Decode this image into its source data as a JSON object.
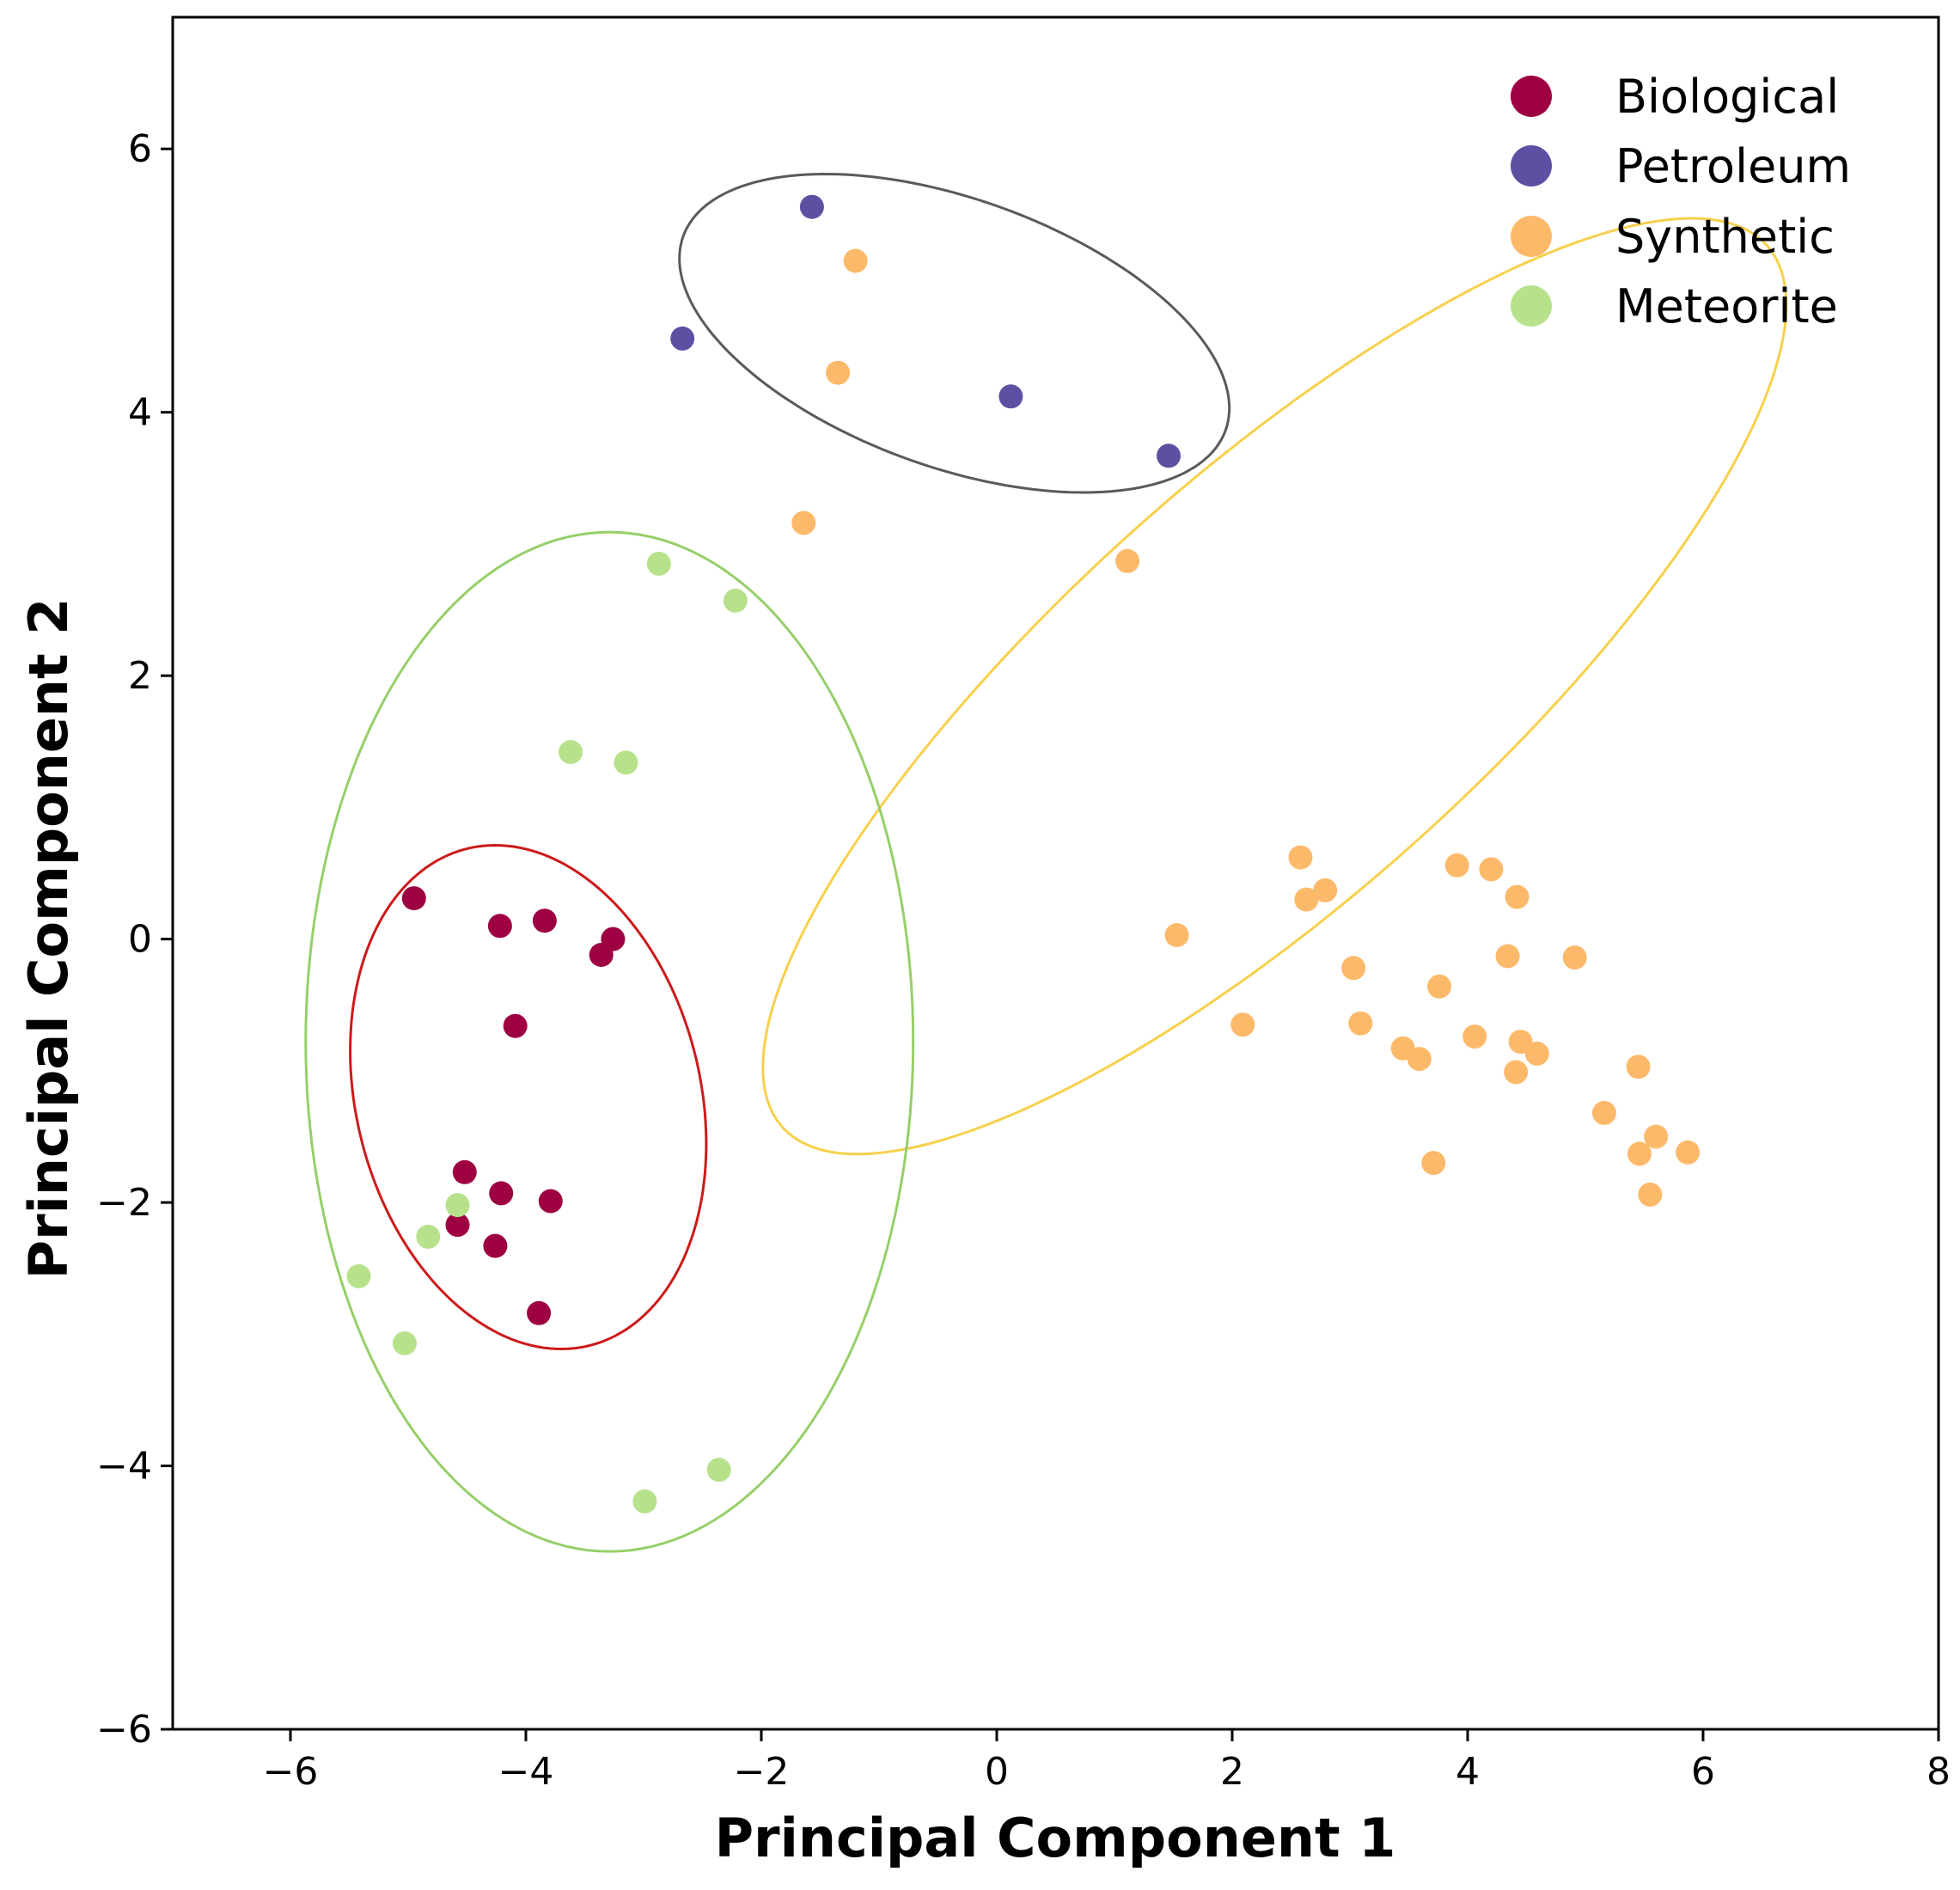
{
  "chart_data": {
    "type": "scatter",
    "title": "",
    "xlabel": "Principal Component 1",
    "ylabel": "Principal Component 2",
    "xlim": [
      -7,
      8
    ],
    "ylim": [
      -6,
      7
    ],
    "xticks": [
      -6,
      -4,
      -2,
      0,
      2,
      4,
      6,
      8
    ],
    "yticks": [
      -6,
      -4,
      -2,
      0,
      2,
      4,
      6
    ],
    "xtick_labels": [
      "−6",
      "−4",
      "−2",
      "0",
      "2",
      "4",
      "6",
      "8"
    ],
    "ytick_labels": [
      "−6",
      "−4",
      "−2",
      "0",
      "2",
      "4",
      "6"
    ],
    "grid": false,
    "legend_position": "top-right",
    "series": [
      {
        "name": "Biological",
        "color": "#9E0142",
        "points": [
          [
            -4.95,
            0.31
          ],
          [
            -4.22,
            0.1
          ],
          [
            -3.84,
            0.14
          ],
          [
            -3.26,
            0.0
          ],
          [
            -3.36,
            -0.12
          ],
          [
            -4.09,
            -0.66
          ],
          [
            -4.52,
            -1.77
          ],
          [
            -4.21,
            -1.93
          ],
          [
            -3.79,
            -1.99
          ],
          [
            -4.58,
            -2.17
          ],
          [
            -4.26,
            -2.33
          ],
          [
            -3.89,
            -2.84
          ]
        ],
        "ellipse": {
          "cx": -3.98,
          "cy": -1.2,
          "rx": 1.45,
          "ry": 1.96,
          "angle_deg": 19
        }
      },
      {
        "name": "Petroleum",
        "color": "#5E4FA2",
        "points": [
          [
            -1.57,
            5.56
          ],
          [
            -2.67,
            4.56
          ],
          [
            0.12,
            4.12
          ],
          [
            1.46,
            3.67
          ]
        ],
        "ellipse": {
          "cx": -0.36,
          "cy": 4.6,
          "rx": 2.42,
          "ry": 1.03,
          "angle_deg": -16.8
        }
      },
      {
        "name": "Synthetic",
        "color": "#FDB96A",
        "points": [
          [
            -1.2,
            5.15
          ],
          [
            -1.35,
            4.3
          ],
          [
            -1.64,
            3.16
          ],
          [
            1.11,
            2.87
          ],
          [
            1.53,
            0.03
          ],
          [
            2.58,
            0.62
          ],
          [
            2.63,
            0.3
          ],
          [
            2.79,
            0.37
          ],
          [
            3.91,
            0.56
          ],
          [
            4.2,
            0.53
          ],
          [
            4.42,
            0.32
          ],
          [
            3.03,
            -0.22
          ],
          [
            4.34,
            -0.13
          ],
          [
            4.91,
            -0.14
          ],
          [
            3.76,
            -0.36
          ],
          [
            2.09,
            -0.65
          ],
          [
            3.09,
            -0.64
          ],
          [
            4.06,
            -0.74
          ],
          [
            3.45,
            -0.83
          ],
          [
            3.59,
            -0.91
          ],
          [
            4.45,
            -0.78
          ],
          [
            4.59,
            -0.87
          ],
          [
            4.41,
            -1.01
          ],
          [
            5.45,
            -0.97
          ],
          [
            5.16,
            -1.32
          ],
          [
            3.71,
            -1.7
          ],
          [
            5.6,
            -1.5
          ],
          [
            5.46,
            -1.63
          ],
          [
            5.87,
            -1.62
          ],
          [
            5.55,
            -1.94
          ]
        ],
        "ellipse": {
          "cx": 2.36,
          "cy": 1.92,
          "rx": 5.36,
          "ry": 1.67,
          "angle_deg": 38
        }
      },
      {
        "name": "Meteorite",
        "color": "#B8E18C",
        "points": [
          [
            -2.87,
            2.85
          ],
          [
            -2.22,
            2.57
          ],
          [
            -3.62,
            1.42
          ],
          [
            -3.15,
            1.34
          ],
          [
            -4.58,
            -2.02
          ],
          [
            -4.83,
            -2.26
          ],
          [
            -5.42,
            -2.56
          ],
          [
            -5.03,
            -3.07
          ],
          [
            -2.36,
            -4.03
          ],
          [
            -2.99,
            -4.27
          ]
        ],
        "ellipse": {
          "cx": -3.29,
          "cy": -0.78,
          "rx": 2.58,
          "ry": 3.87,
          "angle_deg": 0
        }
      }
    ],
    "ellipse_colors": {
      "Biological": "#CC1A1A",
      "Petroleum": "#5A5A5A",
      "Synthetic": "#F7D04C",
      "Meteorite": "#96CF6A"
    }
  }
}
